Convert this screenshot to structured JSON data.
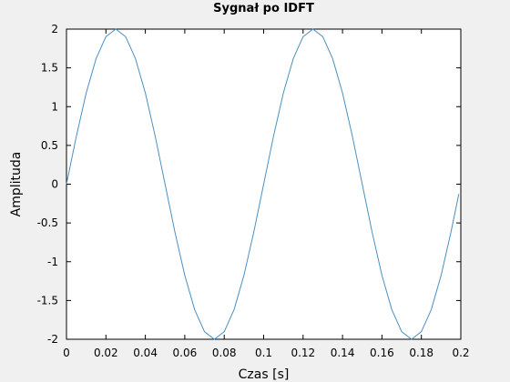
{
  "chart_data": {
    "type": "line",
    "title": "Sygnał po IDFT",
    "xlabel": "Czas [s]",
    "ylabel": "Amplituda",
    "xlim": [
      0,
      0.2
    ],
    "ylim": [
      -2,
      2
    ],
    "xticks": [
      0,
      0.02,
      0.04,
      0.06,
      0.08,
      0.1,
      0.12,
      0.14,
      0.16,
      0.18,
      0.2
    ],
    "yticks": [
      -2,
      -1.5,
      -1,
      -0.5,
      0,
      0.5,
      1,
      1.5,
      2
    ],
    "grid": false,
    "legend": "none",
    "line_color": "#4a90c0",
    "series": [
      {
        "x": [
          0.0,
          0.005,
          0.01,
          0.015,
          0.02,
          0.025,
          0.03,
          0.035,
          0.04,
          0.045,
          0.05,
          0.055,
          0.06,
          0.065,
          0.07,
          0.075,
          0.08,
          0.085,
          0.09,
          0.095,
          0.1,
          0.105,
          0.11,
          0.115,
          0.12,
          0.125,
          0.13,
          0.135,
          0.14,
          0.145,
          0.15,
          0.155,
          0.16,
          0.165,
          0.17,
          0.175,
          0.18,
          0.185,
          0.19,
          0.195,
          0.199
        ],
        "y": [
          0.0,
          0.618,
          1.176,
          1.618,
          1.902,
          2.0,
          1.902,
          1.618,
          1.176,
          0.618,
          0.0,
          -0.618,
          -1.176,
          -1.618,
          -1.902,
          -2.0,
          -1.902,
          -1.618,
          -1.176,
          -0.618,
          0.0,
          0.618,
          1.176,
          1.618,
          1.902,
          2.0,
          1.902,
          1.618,
          1.176,
          0.618,
          0.0,
          -0.618,
          -1.176,
          -1.618,
          -1.902,
          -2.0,
          -1.902,
          -1.618,
          -1.176,
          -0.618,
          -0.126
        ]
      }
    ]
  }
}
